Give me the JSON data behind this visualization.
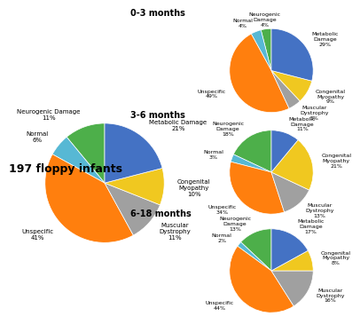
{
  "main_title": "197 floppy infants",
  "main_chart": {
    "labels": [
      "Neurogenic Damage",
      "Normal",
      "Unspecific",
      "Muscular\nDystrophy",
      "Congenital\nMyopathy",
      "Metabolic Damage"
    ],
    "pct_labels": [
      "11%",
      "6%",
      "41%",
      "11%",
      "10%",
      "21%"
    ],
    "values": [
      11,
      6,
      41,
      11,
      10,
      21
    ],
    "colors": [
      "#4daf4a",
      "#57b8d4",
      "#ff7f0e",
      "#a0a0a0",
      "#f0c820",
      "#4472c4"
    ]
  },
  "charts": [
    {
      "title": "0-3 months",
      "labels": [
        "Neurogenic\nDamage",
        "Normal",
        "Unspecific",
        "Muscular\nDystrophy",
        "Congenital\nMyopathy",
        "Metabolic\nDamage"
      ],
      "pct_labels": [
        "4%",
        "4%",
        "49%",
        "5%",
        "9%",
        "29%"
      ],
      "values": [
        4,
        4,
        49,
        5,
        9,
        29
      ],
      "colors": [
        "#4daf4a",
        "#57b8d4",
        "#ff7f0e",
        "#a0a0a0",
        "#f0c820",
        "#4472c4"
      ]
    },
    {
      "title": "3-6 months",
      "labels": [
        "Neurogenic\nDamage",
        "Normal",
        "Unspecific",
        "Muscular\nDystrophy",
        "Congenital\nMyopathy",
        "Metabolic\nDamage"
      ],
      "pct_labels": [
        "18%",
        "3%",
        "34%",
        "13%",
        "21%",
        "11%"
      ],
      "values": [
        18,
        3,
        34,
        13,
        21,
        11
      ],
      "colors": [
        "#4daf4a",
        "#57b8d4",
        "#ff7f0e",
        "#a0a0a0",
        "#f0c820",
        "#4472c4"
      ]
    },
    {
      "title": "6-18 months",
      "labels": [
        "Neurogenic\nDamage",
        "Normal",
        "Unspecific",
        "Muscular\nDystrophy",
        "Congenital\nMyopathy",
        "Metabolic\nDamage"
      ],
      "pct_labels": [
        "13%",
        "2%",
        "44%",
        "16%",
        "8%",
        "17%"
      ],
      "values": [
        13,
        2,
        44,
        16,
        8,
        17
      ],
      "colors": [
        "#4daf4a",
        "#57b8d4",
        "#ff7f0e",
        "#a0a0a0",
        "#f0c820",
        "#4472c4"
      ]
    }
  ],
  "label_fontsize": 5,
  "title_fontsize": 7,
  "main_title_fontsize": 9
}
